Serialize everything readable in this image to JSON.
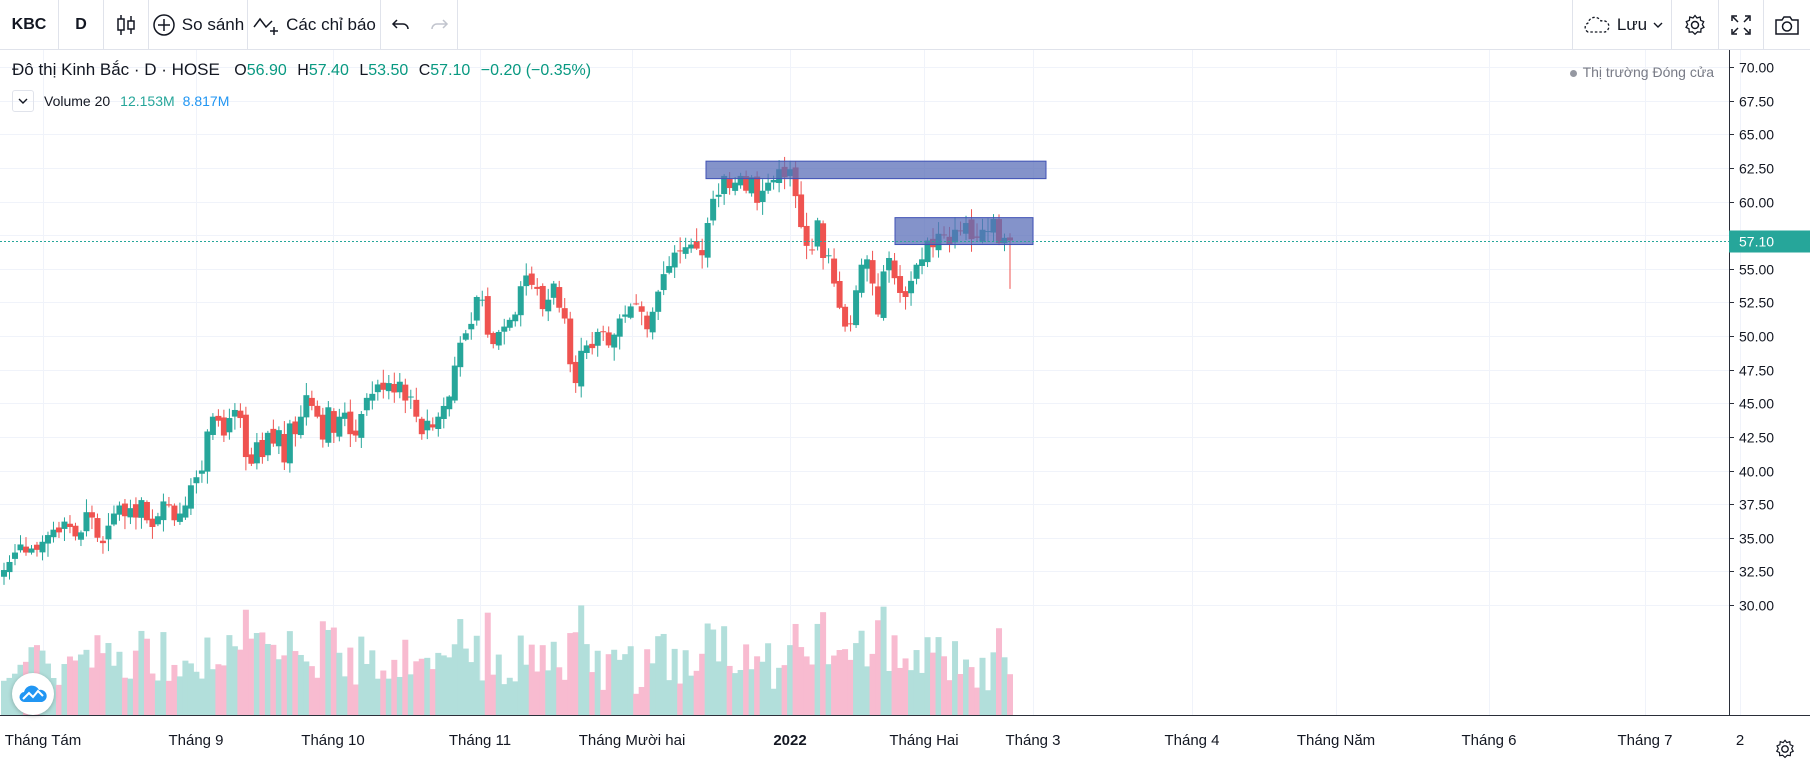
{
  "toolbar": {
    "symbol": "KBC",
    "interval": "D",
    "compare_label": "So sánh",
    "indicators_label": "Các chỉ báo",
    "save_label": "Lưu"
  },
  "legend": {
    "name": "Đô thị Kinh Bắc · D · HOSE",
    "open_label": "O",
    "open": "56.90",
    "high_label": "H",
    "high": "57.40",
    "low_label": "L",
    "low": "53.50",
    "close_label": "C",
    "close": "57.10",
    "change": "−0.20 (−0.35%)"
  },
  "volume_legend": {
    "label": "Volume 20",
    "value1": "12.153M",
    "value2": "8.817M"
  },
  "market_status": "Thị trường Đóng cửa",
  "colors": {
    "up": "#26a69a",
    "down": "#ef5350",
    "vol_up": "#b2dfdb",
    "vol_down": "#f8bbd0",
    "box_fill": "#5b6fb8",
    "last_price": "#26a69a",
    "green_text": "#089981",
    "blue_text": "#2196f3"
  },
  "chart_data": {
    "type": "candlestick",
    "symbol": "KBC",
    "exchange": "HOSE",
    "y_axis": {
      "ylim": [
        29,
        71
      ],
      "ticks": [
        "70.00",
        "67.50",
        "65.00",
        "62.50",
        "60.00",
        "57.50",
        "55.00",
        "52.50",
        "50.00",
        "47.50",
        "45.00",
        "42.50",
        "40.00",
        "37.50",
        "35.00",
        "32.50",
        "30.00"
      ],
      "last_price_label": "57.10",
      "last_price": 57.1
    },
    "x_axis": {
      "ticks": [
        "Tháng Tám",
        "Tháng 9",
        "Tháng 10",
        "Tháng 11",
        "Tháng Mười hai",
        "2022",
        "Tháng Hai",
        "Tháng 3",
        "Tháng 4",
        "Tháng Năm",
        "Tháng 6",
        "Tháng 7",
        "2"
      ],
      "grid": true
    },
    "closes": [
      32.6,
      33.2,
      33.9,
      34.5,
      33.9,
      34.2,
      34.1,
      34.7,
      35.2,
      35.6,
      35.4,
      36.2,
      35.8,
      35.1,
      35.4,
      36.9,
      36.5,
      35.0,
      34.6,
      35.9,
      36.8,
      37.4,
      36.6,
      37.2,
      36.5,
      37.8,
      36.3,
      35.8,
      36.6,
      37.7,
      37.4,
      36.3,
      36.8,
      37.4,
      38.9,
      39.5,
      40.0,
      42.9,
      44.0,
      43.7,
      42.6,
      43.9,
      44.5,
      43.9,
      41.0,
      40.5,
      42.1,
      41.0,
      42.8,
      42.0,
      43.0,
      40.6,
      43.5,
      42.7,
      44.0,
      45.6,
      44.8,
      44.0,
      42.3,
      44.7,
      42.8,
      44.0,
      44.3,
      42.7,
      42.6,
      44.2,
      45.4,
      45.7,
      46.4,
      46.0,
      46.5,
      45.8,
      46.6,
      45.2,
      45.5,
      44.0,
      42.7,
      43.7,
      43.2,
      44.0,
      44.8,
      45.5,
      47.8,
      49.5,
      50.2,
      50.9,
      52.9,
      52.7,
      50.1,
      49.4,
      50.3,
      50.7,
      51.2,
      51.6,
      53.7,
      54.5,
      53.8,
      53.5,
      52.0,
      52.7,
      53.9,
      52.1,
      51.3,
      47.9,
      46.5,
      48.9,
      49.3,
      49.1,
      50.3,
      50.3,
      49.3,
      50.1,
      51.3,
      51.6,
      52.2,
      52.4,
      51.8,
      50.5,
      51.8,
      53.3,
      54.6,
      55.2,
      56.2,
      56.3,
      56.6,
      56.8,
      56.5,
      56.0,
      58.4,
      60.2,
      60.5,
      61.9,
      61.0,
      61.4,
      61.9,
      60.8,
      61.8,
      59.9,
      60.8,
      61.4,
      61.6,
      62.4,
      61.8,
      62.4,
      60.4,
      58.1,
      56.7,
      56.4,
      58.6,
      55.8,
      56.0,
      53.9,
      52.1,
      50.7,
      50.9,
      53.4,
      55.3,
      55.7,
      53.9,
      51.6,
      54.8,
      55.8,
      54.3,
      53.2,
      52.9,
      54.1,
      55.3,
      55.7,
      57.1,
      56.6,
      57.6,
      57.5,
      56.8,
      57.9,
      57.8,
      58.4,
      57.2,
      57.3,
      57.9,
      57.8,
      58.7,
      56.9,
      57.3,
      57.1
    ],
    "highs_lows_visible": {
      "period_high": 63.0,
      "period_low": 31.5
    },
    "shapes": [
      {
        "type": "rectangle",
        "top": 63.0,
        "bottom": 61.7,
        "from_index": 137,
        "to_index": 160
      },
      {
        "type": "rectangle",
        "top": 58.8,
        "bottom": 56.8,
        "from_index": 172,
        "to_index": 185
      }
    ],
    "volume_series": {
      "name": "Volume 20",
      "values_m": [
        "12.153M",
        "8.817M"
      ]
    }
  }
}
